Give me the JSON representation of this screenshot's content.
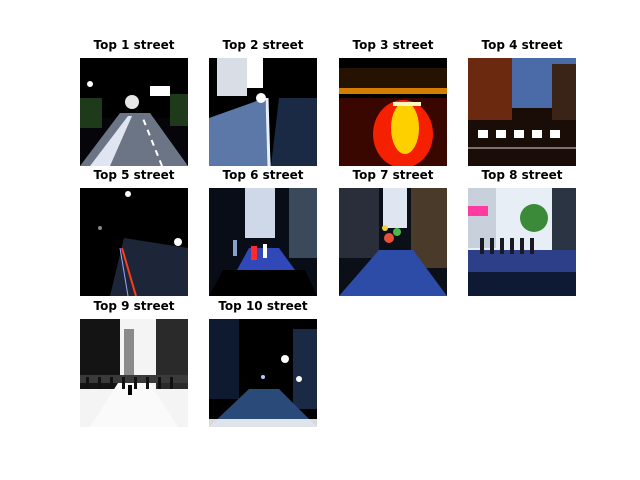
{
  "figure": {
    "background": "#ffffff",
    "grid": {
      "rows": 3,
      "cols": 4
    },
    "tiles": [
      {
        "title": "Top 1 street",
        "scene": "night-road",
        "colors": [
          "#05050a",
          "#dfe6f2",
          "#1f3a1a"
        ]
      },
      {
        "title": "Top 2 street",
        "scene": "sidewalk-buildings",
        "colors": [
          "#0a0f1c",
          "#5b78a8",
          "#ffffff"
        ]
      },
      {
        "title": "Top 3 street",
        "scene": "neon-road",
        "colors": [
          "#000000",
          "#ff2200",
          "#ffd000"
        ]
      },
      {
        "title": "Top 4 street",
        "scene": "crosswalk",
        "colors": [
          "#1a0d08",
          "#ffffff",
          "#6b2a10"
        ]
      },
      {
        "title": "Top 5 street",
        "scene": "dark-tunnel",
        "colors": [
          "#000000",
          "#1c2638",
          "#ff3b1a"
        ]
      },
      {
        "title": "Top 6 street",
        "scene": "alley-people",
        "colors": [
          "#080d18",
          "#3048b8",
          "#ffffff"
        ]
      },
      {
        "title": "Top 7 street",
        "scene": "market-alley",
        "colors": [
          "#0b0f18",
          "#2d4ca8",
          "#c25a3a"
        ]
      },
      {
        "title": "Top 8 street",
        "scene": "shopping-street",
        "colors": [
          "#0e1a33",
          "#2c3f88",
          "#f2e6d6"
        ]
      },
      {
        "title": "Top 9 street",
        "scene": "bw-street",
        "colors": [
          "#141414",
          "#f4f4f4",
          "#8a8a8a"
        ]
      },
      {
        "title": "Top 10 street",
        "scene": "dark-street",
        "colors": [
          "#000000",
          "#2a4a7a",
          "#ffffff"
        ]
      }
    ]
  }
}
